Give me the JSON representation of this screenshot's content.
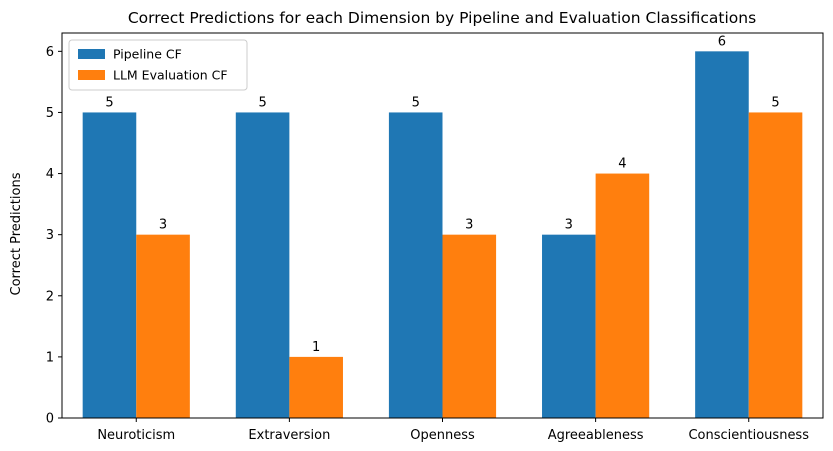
{
  "chart_data": {
    "type": "bar",
    "title": "Correct Predictions for each Dimension by Pipeline and Evaluation Classifications",
    "xlabel": "",
    "ylabel": "Correct Predictions",
    "categories": [
      "Neuroticism",
      "Extraversion",
      "Openness",
      "Agreeableness",
      "Conscientiousness"
    ],
    "series": [
      {
        "name": "Pipeline CF",
        "color": "#1f77b4",
        "values": [
          5,
          5,
          5,
          3,
          6
        ]
      },
      {
        "name": "LLM Evaluation CF",
        "color": "#ff7f0e",
        "values": [
          3,
          1,
          3,
          4,
          5
        ]
      }
    ],
    "ylim": [
      0,
      6.3
    ],
    "yticks": [
      0,
      1,
      2,
      3,
      4,
      5,
      6
    ],
    "grid": false,
    "legend": "top-left",
    "data_labels": true
  }
}
